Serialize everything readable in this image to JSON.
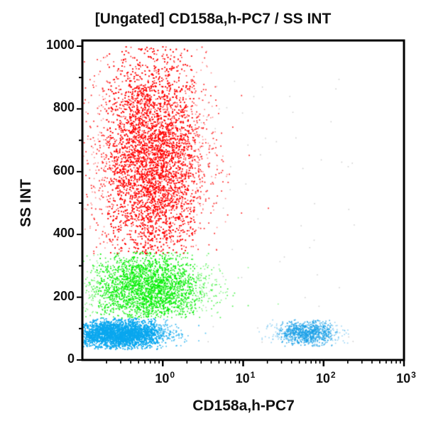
{
  "chart_data": {
    "type": "scatter",
    "title": "[Ungated] CD158a,h-PC7 / SS INT",
    "xlabel": "CD158a,h-PC7",
    "ylabel": "SS INT",
    "x_scale": "log",
    "xlim": [
      0.1,
      1000
    ],
    "ylim": [
      0,
      1000
    ],
    "x_ticks": [
      {
        "base": "10",
        "exp": "0",
        "value": 1
      },
      {
        "base": "10",
        "exp": "1",
        "value": 10
      },
      {
        "base": "10",
        "exp": "2",
        "value": 100
      },
      {
        "base": "10",
        "exp": "3",
        "value": 1000
      }
    ],
    "y_ticks": [
      "0",
      "200",
      "400",
      "600",
      "800",
      "1000"
    ],
    "y_tick_values": [
      0,
      200,
      400,
      600,
      800,
      1000
    ],
    "grid": false,
    "legend": null,
    "populations": [
      {
        "name": "red-population",
        "color": "#ff0000",
        "log10x_center": -0.15,
        "log10x_spread": 0.34,
        "y_center": 640,
        "y_spread": 170,
        "y_min": 340,
        "y_max": 1000,
        "count": 9000
      },
      {
        "name": "green-population",
        "color": "#00ee00",
        "log10x_center": -0.2,
        "log10x_spread": 0.38,
        "y_center": 230,
        "y_spread": 55,
        "y_min": 135,
        "y_max": 345,
        "count": 3500
      },
      {
        "name": "blue-population-low",
        "color": "#0aa8f0",
        "log10x_center": -0.55,
        "log10x_spread": 0.3,
        "y_center": 85,
        "y_spread": 22,
        "y_min": 35,
        "y_max": 135,
        "count": 6000
      },
      {
        "name": "blue-population-high",
        "color": "#1aa0e8",
        "log10x_center": 1.78,
        "log10x_spread": 0.2,
        "y_center": 88,
        "y_spread": 18,
        "y_min": 45,
        "y_max": 130,
        "count": 900
      }
    ],
    "debris": {
      "color": "#999999",
      "count": 60
    }
  }
}
